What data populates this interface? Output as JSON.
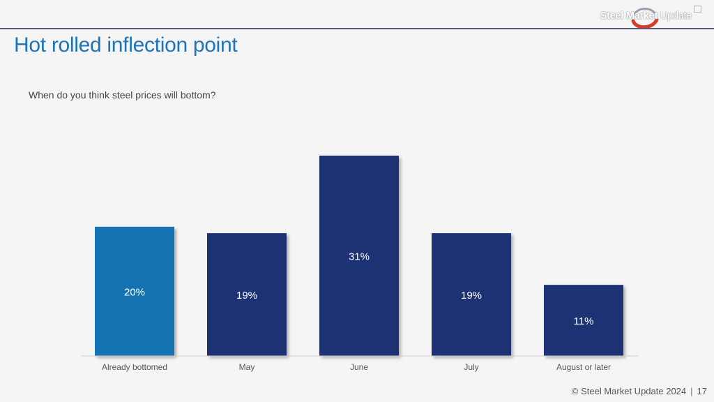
{
  "brand": {
    "name_bold": "Steel Market",
    "name_light": " Update"
  },
  "slide": {
    "title": "Hot rolled inflection point",
    "question": "When do you think steel prices will bottom?",
    "footer_copyright": "© Steel Market Update 2024",
    "footer_page": "17"
  },
  "chart_data": {
    "type": "bar",
    "categories": [
      "Already bottomed",
      "May",
      "June",
      "July",
      "August or later"
    ],
    "values": [
      20,
      19,
      31,
      19,
      11
    ],
    "value_labels": [
      "20%",
      "19%",
      "31%",
      "19%",
      "11%"
    ],
    "ylim": [
      0,
      31
    ],
    "grid": false,
    "legend": false,
    "colors": [
      "#1373b3",
      "#1f3375",
      "#1f3375",
      "#1f3375",
      "#1f3375"
    ]
  }
}
